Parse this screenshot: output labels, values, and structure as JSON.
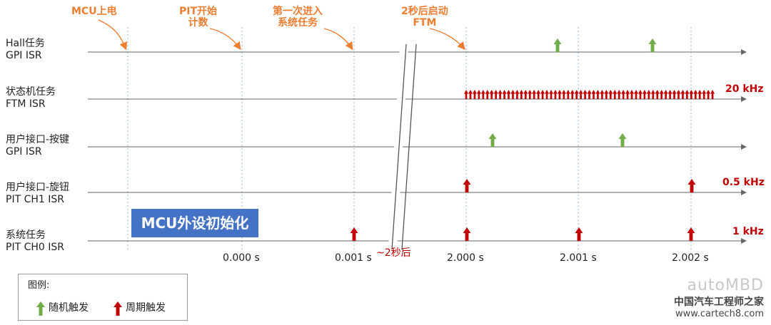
{
  "lanes": [
    {
      "line1": "Hall任务",
      "line2": "GPI ISR"
    },
    {
      "line1": "状态机任务",
      "line2": "FTM ISR"
    },
    {
      "line1": "用户接口-按键",
      "line2": "GPI ISR"
    },
    {
      "line1": "用户接口-旋钮",
      "line2": "PIT CH1 ISR"
    },
    {
      "line1": "系统任务",
      "line2": "PIT CH0 ISR"
    }
  ],
  "events": [
    {
      "line1": "MCU上电",
      "line2": ""
    },
    {
      "line1": "PIT开始",
      "line2": "计数"
    },
    {
      "line1": "第一次进入",
      "line2": "系统任务"
    },
    {
      "line1": "2秒后启动",
      "line2": "FTM"
    }
  ],
  "frequencies": {
    "ftm": "20 kHz",
    "pit_ch1": "0.5 kHz",
    "pit_ch0": "1 kHz"
  },
  "time_ticks": [
    "0.000 s",
    "0.001 s",
    "2.000 s",
    "2.001 s",
    "2.002 s"
  ],
  "gap_label": "~2秒后",
  "init_box": "MCU外设初始化",
  "legend": {
    "title": "图例:",
    "random": "随机触发",
    "periodic": "周期触发"
  },
  "colors": {
    "random": "#70AD47",
    "periodic": "#C00000",
    "event": "#ED7D31",
    "init": "#4472C4"
  },
  "watermark": {
    "brand": "autoMBD",
    "site_name": "中国汽车工程师之家",
    "url": "www.cartech8.com"
  }
}
